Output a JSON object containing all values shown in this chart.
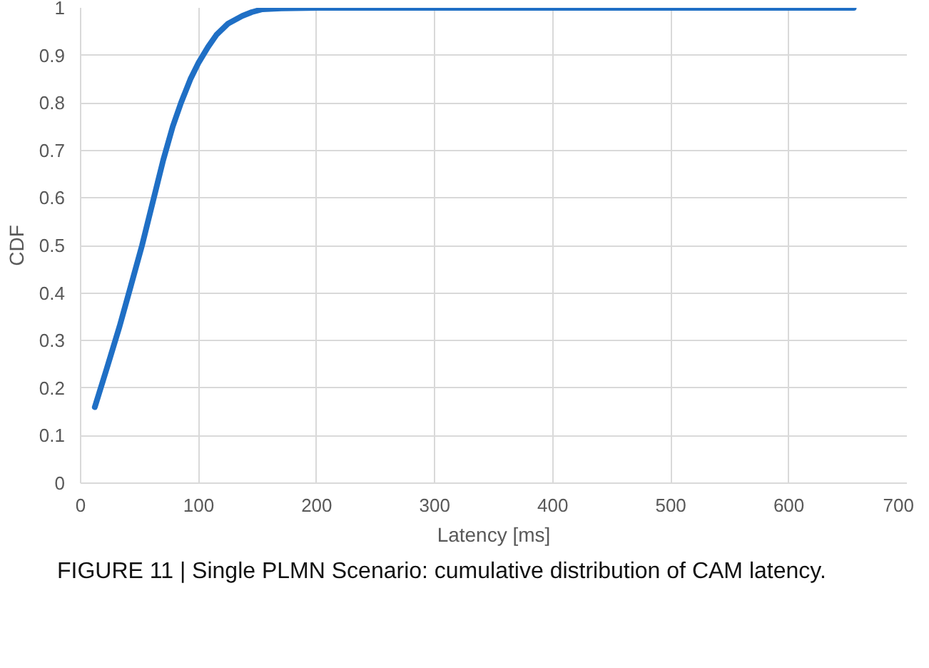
{
  "chart_data": {
    "type": "line",
    "xlabel": "Latency [ms]",
    "ylabel": "CDF",
    "x": [
      12,
      22,
      33,
      42,
      52,
      61,
      70,
      78,
      85,
      93,
      100,
      108,
      115,
      125,
      137,
      145,
      154,
      170,
      200,
      300,
      400,
      500,
      655
    ],
    "series": [
      {
        "color": "#1f6fc5",
        "values": [
          0.16,
          0.24,
          0.33,
          0.41,
          0.5,
          0.59,
          0.68,
          0.75,
          0.8,
          0.85,
          0.885,
          0.918,
          0.943,
          0.967,
          0.983,
          0.991,
          0.997,
          0.999,
          1,
          1,
          1,
          1,
          1
        ]
      }
    ],
    "xlim": [
      0,
      700
    ],
    "ylim": [
      0,
      1
    ],
    "xticks": [
      0,
      100,
      200,
      300,
      400,
      500,
      600,
      700
    ],
    "yticks": [
      0,
      {
        "value": 0.1,
        "label": "0.1"
      },
      {
        "value": 0.2,
        "label": "0.2"
      },
      {
        "value": 0.3,
        "label": "0.3"
      },
      {
        "value": 0.4,
        "label": "0.4"
      },
      {
        "value": 0.5,
        "label": "0.5"
      },
      {
        "value": 0.6,
        "label": "0.6"
      },
      {
        "value": 0.7,
        "label": "0.7"
      },
      {
        "value": 0.8,
        "label": "0.8"
      },
      {
        "value": 0.9,
        "label": "0.9"
      },
      1
    ],
    "grid": true,
    "marker": "none",
    "line_style": "solid",
    "annotations": [
      "FIGURE 11 | Single PLMN Scenario: cumulative distribution of CAM latency."
    ]
  }
}
